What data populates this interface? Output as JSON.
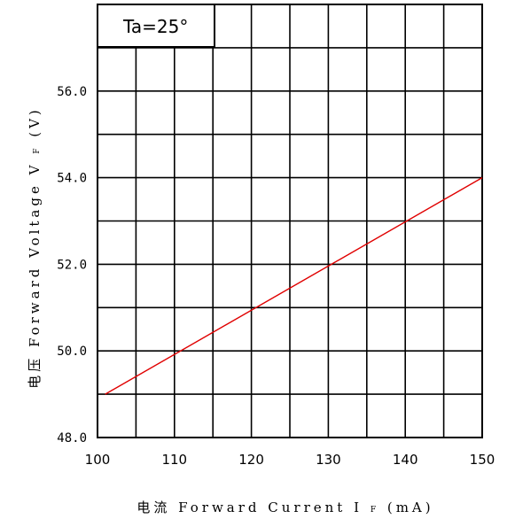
{
  "chart_data": {
    "type": "line",
    "xlabel_prefix": "电流",
    "xlabel_main": "Forward Current I",
    "xlabel_sub": "F",
    "xlabel_unit": "(mA)",
    "ylabel_prefix": "电压",
    "ylabel_main": "Forward Voltage V",
    "ylabel_sub": "F",
    "ylabel_unit": "(V)",
    "annotation": "Ta=25°",
    "xlim": [
      100,
      150
    ],
    "ylim": [
      48,
      58
    ],
    "x_ticks": [
      "100",
      "110",
      "120",
      "130",
      "140",
      "150"
    ],
    "y_ticks": [
      "48.0",
      "50.0",
      "52.0",
      "54.0",
      "56.0"
    ],
    "grid": true,
    "line_color": "#e00000",
    "series": [
      {
        "x": [
          101,
          150
        ],
        "y": [
          49.0,
          54.0
        ]
      }
    ]
  }
}
